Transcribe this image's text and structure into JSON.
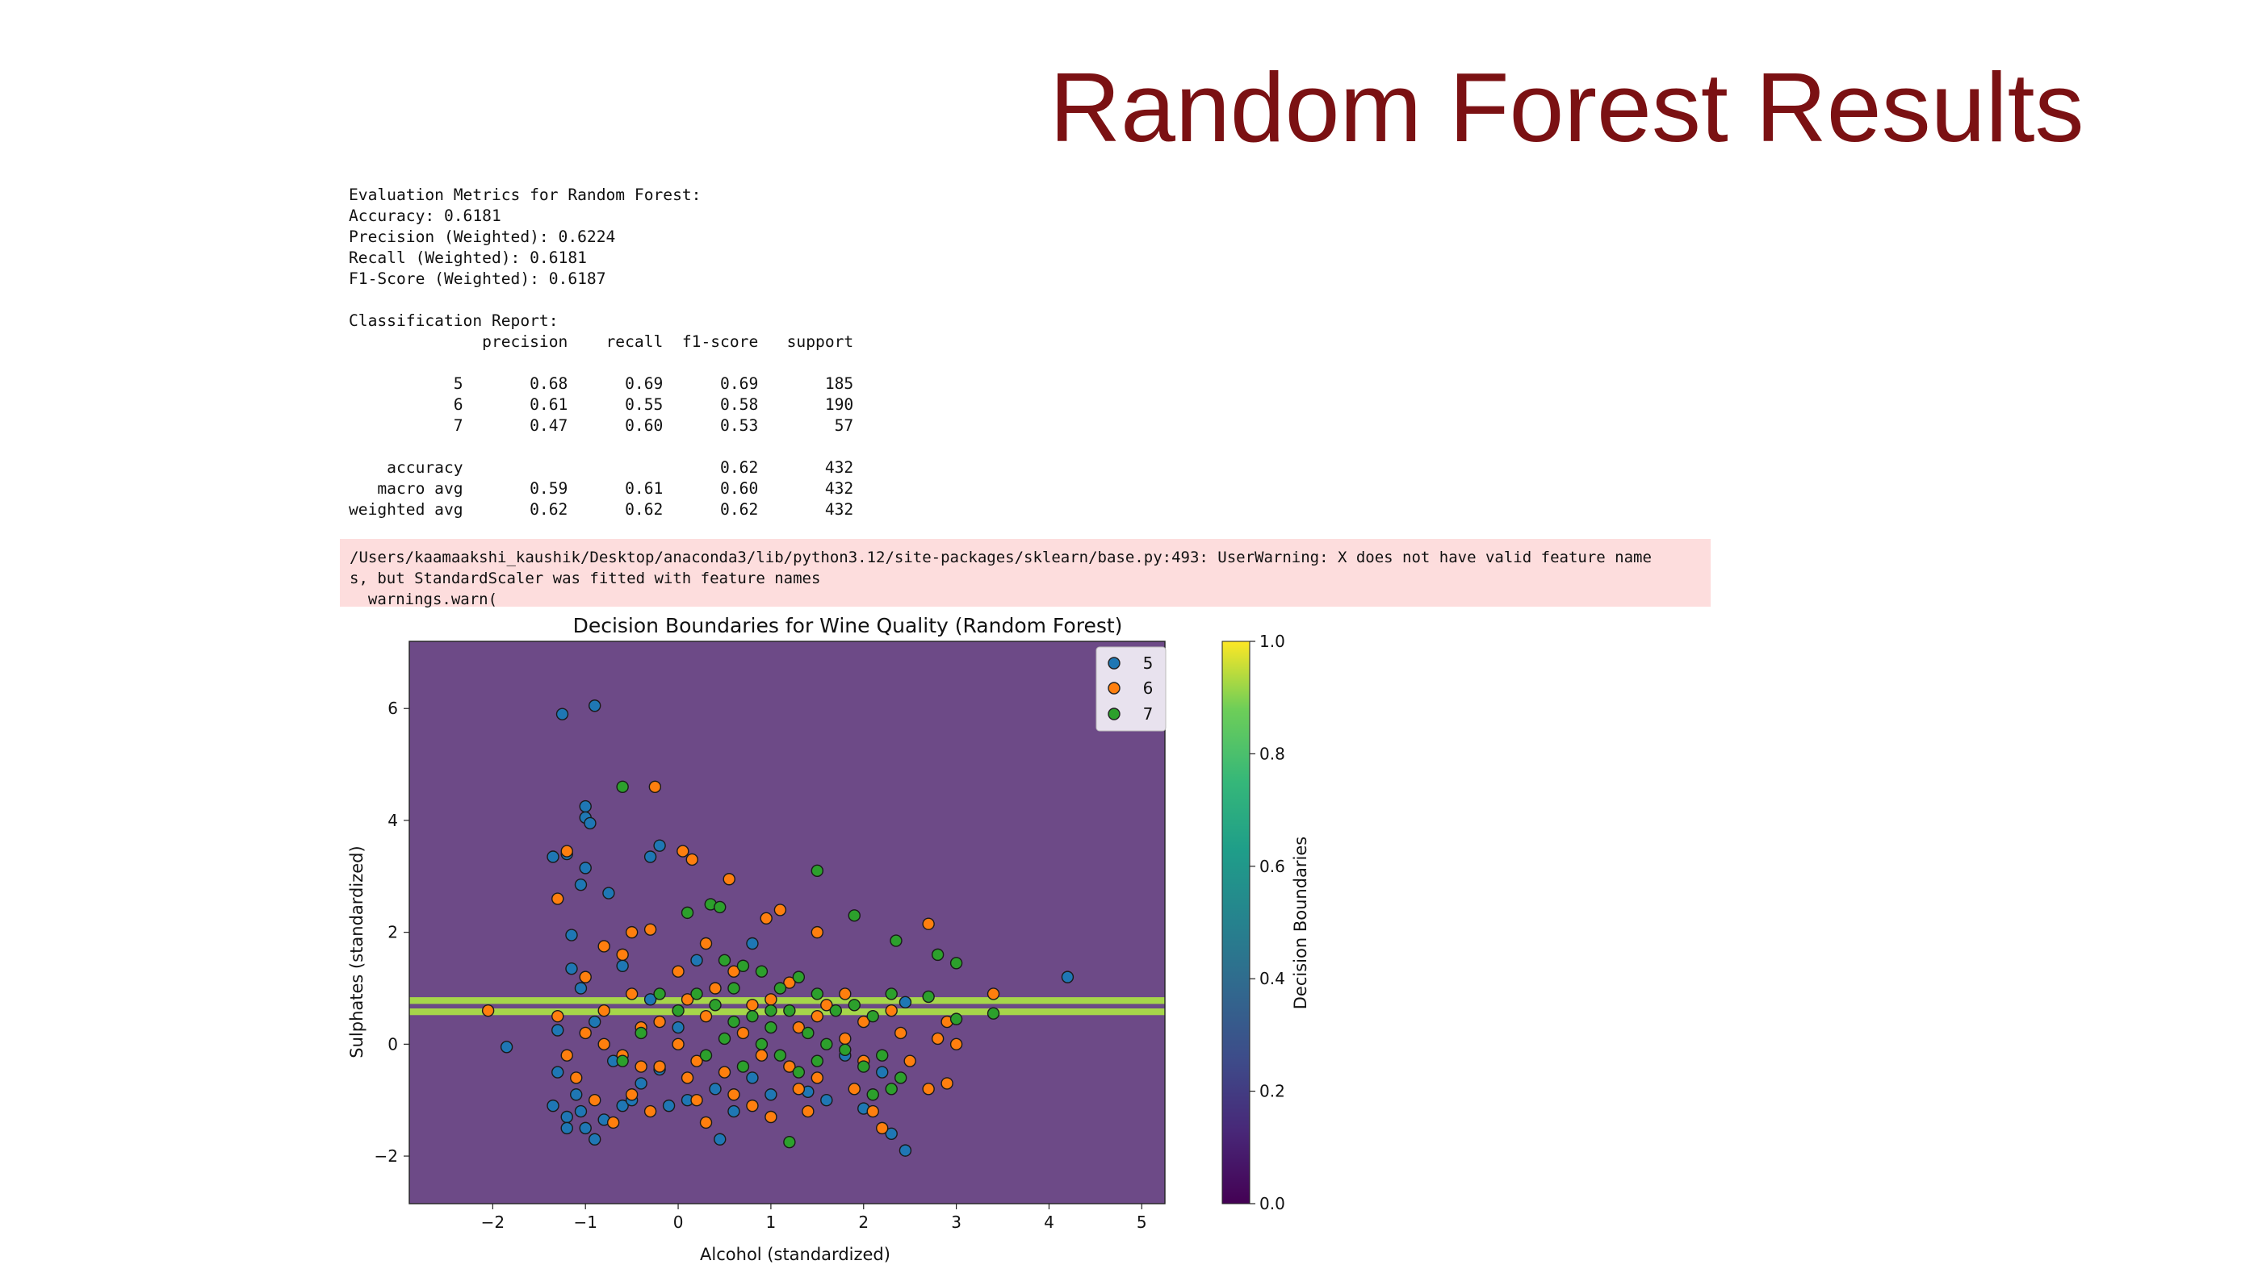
{
  "slide": {
    "title": "Random Forest Results"
  },
  "output": {
    "metrics_lines": [
      "Evaluation Metrics for Random Forest:",
      "Accuracy: 0.6181",
      "Precision (Weighted): 0.6224",
      "Recall (Weighted): 0.6181",
      "F1-Score (Weighted): 0.6187",
      "",
      "Classification Report:",
      "              precision    recall  f1-score   support",
      "",
      "           5       0.68      0.69      0.69       185",
      "           6       0.61      0.55      0.58       190",
      "           7       0.47      0.60      0.53        57",
      "",
      "    accuracy                           0.62       432",
      "   macro avg       0.59      0.61      0.60       432",
      "weighted avg       0.62      0.62      0.62       432"
    ],
    "warning_lines": [
      "/Users/kaamaakshi_kaushik/Desktop/anaconda3/lib/python3.12/site-packages/sklearn/base.py:493: UserWarning: X does not have valid feature name",
      "s, but StandardScaler was fitted with feature names",
      "  warnings.warn("
    ]
  },
  "chart_data": {
    "type": "scatter",
    "title": "Decision Boundaries for Wine Quality (Random Forest)",
    "xlabel": "Alcohol (standardized)",
    "ylabel": "Sulphates (standardized)",
    "xlim": [
      -2.9,
      5.25
    ],
    "ylim": [
      -2.85,
      7.2
    ],
    "xticks": [
      -2,
      -1,
      0,
      1,
      2,
      3,
      4,
      5
    ],
    "yticks": [
      -2,
      0,
      2,
      4,
      6
    ],
    "xtick_labels": [
      "−2",
      "−1",
      "0",
      "1",
      "2",
      "3",
      "4",
      "5"
    ],
    "ytick_labels": [
      "−2",
      "0",
      "2",
      "4",
      "6"
    ],
    "background_color": "#6d4a87",
    "boundary_bands": [
      {
        "y0": 0.52,
        "y1": 0.64,
        "color": "#a6d64a"
      },
      {
        "y0": 0.64,
        "y1": 0.72,
        "color": "#6b4a86"
      },
      {
        "y0": 0.72,
        "y1": 0.84,
        "color": "#a6d64a"
      }
    ],
    "legend": {
      "placement": "top-right",
      "labels": [
        "5",
        "6",
        "7"
      ]
    },
    "colors": {
      "5": "#1f77b4",
      "6": "#ff7f0e",
      "7": "#2ca02c"
    },
    "colorbar": {
      "label": "Decision Boundaries",
      "range": [
        0.0,
        1.0
      ],
      "ticks": [
        0.0,
        0.2,
        0.4,
        0.6,
        0.8,
        1.0
      ],
      "tick_labels": [
        "0.0",
        "0.2",
        "0.4",
        "0.6",
        "0.8",
        "1.0"
      ],
      "colormap": "viridis"
    },
    "series": [
      {
        "name": "5",
        "points": [
          [
            -1.25,
            5.9
          ],
          [
            -0.9,
            6.05
          ],
          [
            -1.0,
            4.25
          ],
          [
            -1.0,
            4.05
          ],
          [
            -0.95,
            3.95
          ],
          [
            -1.35,
            3.35
          ],
          [
            -1.2,
            3.4
          ],
          [
            -1.0,
            3.15
          ],
          [
            -1.05,
            2.85
          ],
          [
            -0.75,
            2.7
          ],
          [
            -0.3,
            3.35
          ],
          [
            -0.2,
            3.55
          ],
          [
            -1.15,
            1.95
          ],
          [
            -1.15,
            1.35
          ],
          [
            -1.05,
            1.0
          ],
          [
            -1.3,
            0.25
          ],
          [
            -1.85,
            -0.05
          ],
          [
            -1.3,
            -0.5
          ],
          [
            -1.1,
            -0.9
          ],
          [
            -1.35,
            -1.1
          ],
          [
            -1.2,
            -1.3
          ],
          [
            -1.0,
            -1.5
          ],
          [
            -0.9,
            -1.7
          ],
          [
            -0.8,
            -1.35
          ],
          [
            -0.6,
            -1.1
          ],
          [
            -0.4,
            -0.7
          ],
          [
            -0.2,
            -0.45
          ],
          [
            -0.1,
            -1.1
          ],
          [
            0.1,
            -1.0
          ],
          [
            0.4,
            -0.8
          ],
          [
            0.45,
            -1.7
          ],
          [
            0.6,
            -1.2
          ],
          [
            0.8,
            -0.6
          ],
          [
            1.0,
            -0.9
          ],
          [
            1.4,
            -0.85
          ],
          [
            1.6,
            -1.0
          ],
          [
            2.0,
            -1.15
          ],
          [
            2.3,
            -1.6
          ],
          [
            2.45,
            -1.9
          ],
          [
            2.45,
            0.75
          ],
          [
            4.2,
            1.2
          ],
          [
            0.8,
            1.8
          ],
          [
            0.2,
            1.5
          ],
          [
            -0.6,
            1.4
          ],
          [
            -0.9,
            0.4
          ],
          [
            -0.7,
            -0.3
          ],
          [
            -1.05,
            -1.2
          ],
          [
            -1.2,
            -1.5
          ],
          [
            -0.5,
            -1.0
          ],
          [
            1.2,
            -0.4
          ],
          [
            1.8,
            -0.2
          ],
          [
            2.2,
            -0.5
          ],
          [
            0.0,
            0.3
          ],
          [
            -0.3,
            0.8
          ]
        ]
      },
      {
        "name": "6",
        "points": [
          [
            -0.25,
            4.6
          ],
          [
            0.05,
            3.45
          ],
          [
            0.15,
            3.3
          ],
          [
            0.55,
            2.95
          ],
          [
            -1.2,
            3.45
          ],
          [
            -1.3,
            2.6
          ],
          [
            -0.8,
            1.75
          ],
          [
            -0.5,
            2.0
          ],
          [
            -0.3,
            2.05
          ],
          [
            0.0,
            1.3
          ],
          [
            0.3,
            1.8
          ],
          [
            0.95,
            2.25
          ],
          [
            1.1,
            2.4
          ],
          [
            1.5,
            2.0
          ],
          [
            2.7,
            2.15
          ],
          [
            3.4,
            0.9
          ],
          [
            2.9,
            0.4
          ],
          [
            -2.05,
            0.6
          ],
          [
            -1.3,
            0.5
          ],
          [
            -1.0,
            0.2
          ],
          [
            -0.8,
            0.0
          ],
          [
            -0.6,
            -0.2
          ],
          [
            -0.4,
            0.3
          ],
          [
            -0.2,
            -0.4
          ],
          [
            0.0,
            0.0
          ],
          [
            0.2,
            -0.3
          ],
          [
            0.3,
            0.5
          ],
          [
            0.5,
            -0.5
          ],
          [
            0.7,
            0.2
          ],
          [
            0.9,
            -0.2
          ],
          [
            1.0,
            0.8
          ],
          [
            1.2,
            -0.4
          ],
          [
            1.3,
            0.3
          ],
          [
            1.5,
            -0.6
          ],
          [
            1.6,
            0.7
          ],
          [
            1.8,
            0.1
          ],
          [
            1.9,
            -0.8
          ],
          [
            2.0,
            0.4
          ],
          [
            2.1,
            -1.2
          ],
          [
            2.2,
            -1.5
          ],
          [
            2.4,
            0.2
          ],
          [
            2.5,
            -0.3
          ],
          [
            2.8,
            0.1
          ],
          [
            3.0,
            0.0
          ],
          [
            2.9,
            -0.7
          ],
          [
            2.7,
            -0.8
          ],
          [
            -1.1,
            -0.6
          ],
          [
            -0.9,
            -1.0
          ],
          [
            -0.7,
            -1.4
          ],
          [
            -0.5,
            -0.9
          ],
          [
            -0.3,
            -1.2
          ],
          [
            0.2,
            -1.0
          ],
          [
            0.3,
            -1.4
          ],
          [
            0.6,
            -0.9
          ],
          [
            0.8,
            -1.1
          ],
          [
            1.0,
            -1.3
          ],
          [
            1.4,
            -1.2
          ],
          [
            -1.0,
            1.2
          ],
          [
            -0.5,
            0.9
          ],
          [
            0.1,
            0.8
          ],
          [
            0.6,
            1.3
          ],
          [
            1.2,
            1.1
          ],
          [
            1.8,
            0.9
          ],
          [
            2.3,
            0.6
          ],
          [
            -0.6,
            1.6
          ],
          [
            0.4,
            1.0
          ],
          [
            1.5,
            0.5
          ],
          [
            2.0,
            -0.3
          ],
          [
            -1.2,
            -0.2
          ],
          [
            -0.8,
            0.6
          ],
          [
            -0.2,
            0.4
          ],
          [
            0.8,
            0.7
          ],
          [
            1.3,
            -0.8
          ],
          [
            -0.4,
            -0.4
          ],
          [
            0.1,
            -0.6
          ]
        ]
      },
      {
        "name": "7",
        "points": [
          [
            -0.6,
            4.6
          ],
          [
            1.5,
            3.1
          ],
          [
            0.1,
            2.35
          ],
          [
            0.35,
            2.5
          ],
          [
            0.45,
            2.45
          ],
          [
            1.9,
            2.3
          ],
          [
            2.35,
            1.85
          ],
          [
            2.8,
            1.6
          ],
          [
            3.0,
            1.45
          ],
          [
            1.2,
            -1.75
          ],
          [
            0.5,
            1.5
          ],
          [
            0.7,
            1.4
          ],
          [
            0.9,
            1.3
          ],
          [
            1.1,
            1.0
          ],
          [
            1.3,
            1.2
          ],
          [
            1.5,
            0.9
          ],
          [
            1.7,
            0.6
          ],
          [
            1.9,
            0.7
          ],
          [
            2.1,
            0.5
          ],
          [
            2.3,
            0.9
          ],
          [
            2.7,
            0.85
          ],
          [
            3.0,
            0.45
          ],
          [
            3.4,
            0.55
          ],
          [
            0.2,
            0.9
          ],
          [
            0.4,
            0.7
          ],
          [
            0.6,
            1.0
          ],
          [
            0.8,
            0.5
          ],
          [
            1.0,
            0.3
          ],
          [
            1.2,
            0.6
          ],
          [
            1.4,
            0.2
          ],
          [
            1.6,
            0.0
          ],
          [
            1.8,
            -0.1
          ],
          [
            2.0,
            -0.4
          ],
          [
            2.2,
            -0.2
          ],
          [
            2.4,
            -0.6
          ],
          [
            0.0,
            0.6
          ],
          [
            -0.2,
            0.9
          ],
          [
            -0.4,
            0.2
          ],
          [
            -0.6,
            -0.3
          ],
          [
            0.3,
            -0.2
          ],
          [
            0.5,
            0.1
          ],
          [
            0.7,
            -0.4
          ],
          [
            0.9,
            0.0
          ],
          [
            1.1,
            -0.2
          ],
          [
            1.3,
            -0.5
          ],
          [
            1.5,
            -0.3
          ],
          [
            2.3,
            -0.8
          ],
          [
            2.1,
            -0.9
          ],
          [
            0.6,
            0.4
          ],
          [
            1.0,
            0.6
          ]
        ]
      }
    ]
  }
}
